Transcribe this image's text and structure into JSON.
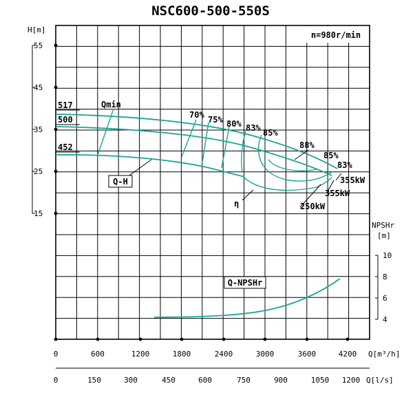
{
  "title": "NSC600-500-550S",
  "speed_label": "n=980r/min",
  "axes": {
    "h_label": "H[m]",
    "h_ticks": [
      "55",
      "45",
      "35",
      "25",
      "15"
    ],
    "npsh_label": "NPSHr",
    "npsh_unit": "[m]",
    "npsh_ticks": [
      "10",
      "8",
      "6",
      "4"
    ],
    "q_h_label": "Q[m³/h]",
    "q_h_ticks": [
      "0",
      "600",
      "1200",
      "1800",
      "2400",
      "3000",
      "3600",
      "4200"
    ],
    "q_s_label": "Q[l/s]",
    "q_s_ticks": [
      "0",
      "150",
      "300",
      "450",
      "600",
      "750",
      "900",
      "1050",
      "1200"
    ]
  },
  "annotations": {
    "d517": "517",
    "d500": "500",
    "d452": "452",
    "qmin": "Qmin",
    "qh": "Q-H",
    "eta": "η",
    "qnpsh": "Q-NPSHr",
    "e70": "70%",
    "e75": "75%",
    "e80": "80%",
    "e83a": "83%",
    "e85a": "85%",
    "e88": "88%",
    "e85b": "85%",
    "e83b": "83%",
    "p355a": "355kW",
    "p355b": "355kW",
    "p250": "250kW"
  },
  "colors": {
    "curve": "#1aa595",
    "grid": "#000000"
  },
  "chart_data": {
    "type": "line",
    "title": "NSC600-500-550S",
    "xlabel": "Q[m³/h]",
    "ylabel": "H[m]",
    "xlim": [
      0,
      4500
    ],
    "ylim": [
      15,
      55
    ],
    "npsh_ylim": [
      4,
      10
    ],
    "series": [
      {
        "name": "517",
        "x": [
          0,
          600,
          1200,
          1800,
          2400,
          3000,
          3600,
          4000
        ],
        "y": [
          39,
          38.6,
          37.8,
          36.3,
          34.2,
          31.5,
          28.3,
          26.1
        ]
      },
      {
        "name": "500",
        "x": [
          0,
          600,
          1200,
          1800,
          2400,
          3000,
          3600,
          3950
        ],
        "y": [
          36,
          35.6,
          34.8,
          33.4,
          31.4,
          28.9,
          25.9,
          24.0
        ]
      },
      {
        "name": "452",
        "x": [
          0,
          600,
          1200,
          1800,
          2400,
          2700
        ],
        "y": [
          29.5,
          29.2,
          28.4,
          27.0,
          25.0,
          23.7
        ]
      },
      {
        "name": "Q-NPSHr",
        "x": [
          1400,
          1800,
          2400,
          3000,
          3600,
          4100
        ],
        "y": [
          4.1,
          4.15,
          4.35,
          5.0,
          6.3,
          7.8
        ]
      }
    ],
    "efficiency_labels": [
      "70%",
      "75%",
      "80%",
      "83%",
      "85%",
      "88%"
    ],
    "power_labels": [
      "355kW",
      "250kW"
    ]
  }
}
